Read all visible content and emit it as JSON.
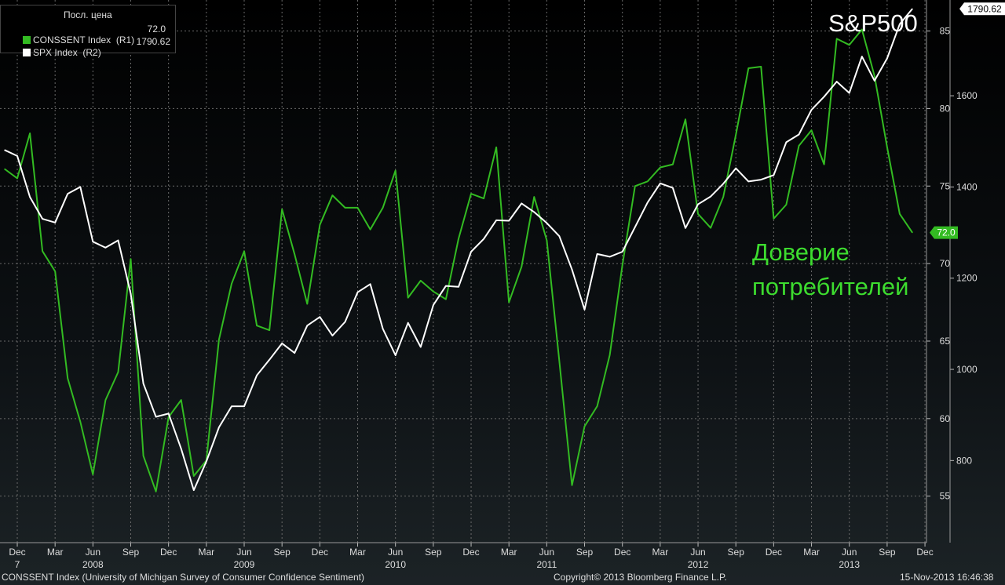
{
  "legend": {
    "header": "Посл. цена",
    "items": [
      {
        "label": "CONSSENT Index  (R1)",
        "value": "72.0",
        "color": "#33bb22"
      },
      {
        "label": "SPX Index  (R2)",
        "value": "1790.62",
        "color": "#ffffff"
      }
    ]
  },
  "annotations": {
    "sp500": "S&P500",
    "consumer_line1": "Доверие",
    "consumer_line2": "потребителей"
  },
  "footer": {
    "source": "CONSSENT Index (University of Michigan Survey of Consumer Confidence Sentiment)",
    "copyright": "Copyright© 2013 Bloomberg Finance L.P.",
    "timestamp": "15-Nov-2013 16:46:38"
  },
  "colors": {
    "consent": "#33bb22",
    "spx": "#ffffff",
    "green_label": "#3ddc2f"
  },
  "chart_data": {
    "type": "line",
    "x_start": "2007-12",
    "x_end": "2013-11",
    "x_ticks": [
      {
        "label": "Dec",
        "date": "2007-12"
      },
      {
        "label": "Mar",
        "date": "2008-03"
      },
      {
        "label": "Jun",
        "date": "2008-06"
      },
      {
        "label": "Sep",
        "date": "2008-09"
      },
      {
        "label": "Dec",
        "date": "2008-12"
      },
      {
        "label": "Mar",
        "date": "2009-03"
      },
      {
        "label": "Jun",
        "date": "2009-06"
      },
      {
        "label": "Sep",
        "date": "2009-09"
      },
      {
        "label": "Dec",
        "date": "2009-12"
      },
      {
        "label": "Mar",
        "date": "2010-03"
      },
      {
        "label": "Jun",
        "date": "2010-06"
      },
      {
        "label": "Sep",
        "date": "2010-09"
      },
      {
        "label": "Dec",
        "date": "2010-12"
      },
      {
        "label": "Mar",
        "date": "2011-03"
      },
      {
        "label": "Jun",
        "date": "2011-06"
      },
      {
        "label": "Sep",
        "date": "2011-09"
      },
      {
        "label": "Dec",
        "date": "2011-12"
      },
      {
        "label": "Mar",
        "date": "2012-03"
      },
      {
        "label": "Jun",
        "date": "2012-06"
      },
      {
        "label": "Sep",
        "date": "2012-09"
      },
      {
        "label": "Dec",
        "date": "2012-12"
      },
      {
        "label": "Mar",
        "date": "2013-03"
      },
      {
        "label": "Jun",
        "date": "2013-06"
      },
      {
        "label": "Sep",
        "date": "2013-09"
      },
      {
        "label": "Dec",
        "date": "2013-12"
      }
    ],
    "year_labels": [
      {
        "label": "7",
        "date": "2007-12"
      },
      {
        "label": "2008",
        "date": "2008-06"
      },
      {
        "label": "2009",
        "date": "2009-06"
      },
      {
        "label": "2010",
        "date": "2010-06"
      },
      {
        "label": "2011",
        "date": "2011-06"
      },
      {
        "label": "2012",
        "date": "2012-06"
      },
      {
        "label": "2013",
        "date": "2013-06"
      }
    ],
    "y_axes": {
      "R1": {
        "ticks": [
          55,
          60,
          65,
          70,
          75,
          80,
          85
        ],
        "ylim": [
          52,
          87
        ]
      },
      "R2": {
        "ticks": [
          800,
          1000,
          1200,
          1400,
          1600
        ],
        "ylim": [
          620,
          1810
        ]
      }
    },
    "last_value_tags": [
      {
        "series": "CONSSENT Index",
        "label": "72.0",
        "value": 72.0,
        "axis": "R1"
      },
      {
        "series": "SPX Index",
        "label": "1790.62",
        "value": 1790.62,
        "axis": "R2"
      }
    ],
    "series": [
      {
        "name": "CONSSENT Index",
        "axis": "R1",
        "color": "#33bb22",
        "x": [
          "2007-11",
          "2007-12",
          "2008-01",
          "2008-02",
          "2008-03",
          "2008-04",
          "2008-05",
          "2008-06",
          "2008-07",
          "2008-08",
          "2008-09",
          "2008-10",
          "2008-11",
          "2008-12",
          "2009-01",
          "2009-02",
          "2009-03",
          "2009-04",
          "2009-05",
          "2009-06",
          "2009-07",
          "2009-08",
          "2009-09",
          "2009-10",
          "2009-11",
          "2009-12",
          "2010-01",
          "2010-02",
          "2010-03",
          "2010-04",
          "2010-05",
          "2010-06",
          "2010-07",
          "2010-08",
          "2010-09",
          "2010-10",
          "2010-11",
          "2010-12",
          "2011-01",
          "2011-02",
          "2011-03",
          "2011-04",
          "2011-05",
          "2011-06",
          "2011-07",
          "2011-08",
          "2011-09",
          "2011-10",
          "2011-11",
          "2011-12",
          "2012-01",
          "2012-02",
          "2012-03",
          "2012-04",
          "2012-05",
          "2012-06",
          "2012-07",
          "2012-08",
          "2012-09",
          "2012-10",
          "2012-11",
          "2012-12",
          "2013-01",
          "2013-02",
          "2013-03",
          "2013-04",
          "2013-05",
          "2013-06",
          "2013-07",
          "2013-08",
          "2013-09",
          "2013-10",
          "2013-11"
        ],
        "values": [
          76.1,
          75.5,
          78.4,
          70.8,
          69.5,
          62.6,
          59.8,
          56.4,
          61.2,
          63.0,
          70.3,
          57.6,
          55.3,
          60.1,
          61.2,
          56.3,
          57.3,
          65.1,
          68.7,
          70.8,
          66.0,
          65.7,
          73.5,
          70.6,
          67.4,
          72.5,
          74.4,
          73.6,
          73.6,
          72.2,
          73.6,
          76.0,
          67.8,
          68.9,
          68.2,
          67.7,
          71.6,
          74.5,
          74.2,
          77.5,
          67.5,
          69.8,
          74.3,
          71.5,
          63.7,
          55.7,
          59.5,
          60.8,
          64.1,
          69.9,
          75.0,
          75.3,
          76.2,
          76.4,
          79.3,
          73.2,
          72.3,
          74.3,
          78.3,
          82.6,
          82.7,
          72.9,
          73.8,
          77.6,
          78.6,
          76.4,
          84.5,
          84.1,
          85.1,
          82.1,
          77.5,
          73.2,
          72.0
        ]
      },
      {
        "name": "SPX Index",
        "axis": "R2",
        "color": "#ffffff",
        "x": [
          "2007-11",
          "2007-12",
          "2008-01",
          "2008-02",
          "2008-03",
          "2008-04",
          "2008-05",
          "2008-06",
          "2008-07",
          "2008-08",
          "2008-09",
          "2008-10",
          "2008-11",
          "2008-12",
          "2009-01",
          "2009-02",
          "2009-03",
          "2009-04",
          "2009-05",
          "2009-06",
          "2009-07",
          "2009-08",
          "2009-09",
          "2009-10",
          "2009-11",
          "2009-12",
          "2010-01",
          "2010-02",
          "2010-03",
          "2010-04",
          "2010-05",
          "2010-06",
          "2010-07",
          "2010-08",
          "2010-09",
          "2010-10",
          "2010-11",
          "2010-12",
          "2011-01",
          "2011-02",
          "2011-03",
          "2011-04",
          "2011-05",
          "2011-06",
          "2011-07",
          "2011-08",
          "2011-09",
          "2011-10",
          "2011-11",
          "2011-12",
          "2012-01",
          "2012-02",
          "2012-03",
          "2012-04",
          "2012-05",
          "2012-06",
          "2012-07",
          "2012-08",
          "2012-09",
          "2012-10",
          "2012-11",
          "2012-12",
          "2013-01",
          "2013-02",
          "2013-03",
          "2013-04",
          "2013-05",
          "2013-06",
          "2013-07",
          "2013-08",
          "2013-09",
          "2013-10",
          "2013-11"
        ],
        "values": [
          1481,
          1468,
          1378,
          1330,
          1322,
          1385,
          1400,
          1280,
          1267,
          1283,
          1166,
          969,
          896,
          903,
          826,
          735,
          798,
          873,
          919,
          919,
          987,
          1021,
          1057,
          1036,
          1096,
          1115,
          1074,
          1104,
          1169,
          1187,
          1089,
          1031,
          1102,
          1049,
          1141,
          1183,
          1181,
          1258,
          1286,
          1327,
          1326,
          1364,
          1345,
          1321,
          1292,
          1219,
          1131,
          1253,
          1247,
          1258,
          1312,
          1366,
          1408,
          1398,
          1310,
          1362,
          1379,
          1407,
          1441,
          1412,
          1416,
          1426,
          1498,
          1515,
          1569,
          1598,
          1631,
          1606,
          1686,
          1633,
          1682,
          1757,
          1790.62
        ]
      }
    ]
  }
}
